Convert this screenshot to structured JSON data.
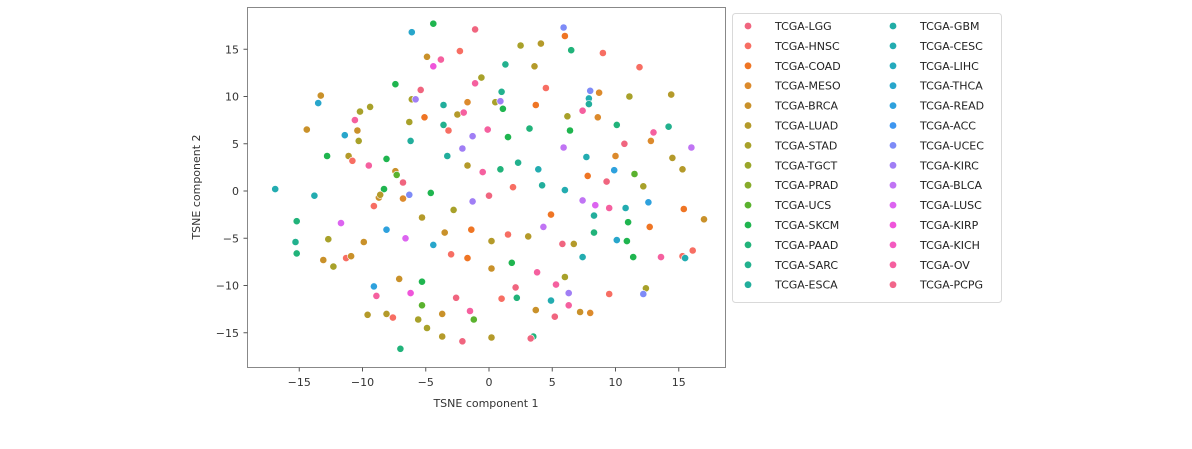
{
  "chart_data": {
    "type": "scatter",
    "title": "",
    "xlabel": "TSNE component 1",
    "ylabel": "TSNE component 2",
    "xlim": [
      -19.2,
      18.6
    ],
    "ylim": [
      -18.6,
      19.4
    ],
    "xticks": [
      -15,
      -10,
      -5,
      0,
      5,
      10,
      15
    ],
    "yticks": [
      -15,
      -10,
      -5,
      0,
      5,
      10,
      15
    ],
    "xtick_labels": [
      "−15",
      "−10",
      "−5",
      "0",
      "5",
      "10",
      "15"
    ],
    "ytick_labels": [
      "−15",
      "−10",
      "−5",
      "0",
      "5",
      "10",
      "15"
    ],
    "grid": false,
    "legend_position": "outside right, 2 columns",
    "legend": [
      {
        "label": "TCGA-LGG",
        "color": "#f0657f"
      },
      {
        "label": "TCGA-HNSC",
        "color": "#f76e63"
      },
      {
        "label": "TCGA-COAD",
        "color": "#ef7524"
      },
      {
        "label": "TCGA-MESO",
        "color": "#dc8a2c"
      },
      {
        "label": "TCGA-BRCA",
        "color": "#c9912a"
      },
      {
        "label": "TCGA-LUAD",
        "color": "#b49a2a"
      },
      {
        "label": "TCGA-STAD",
        "color": "#a8a12a"
      },
      {
        "label": "TCGA-TGCT",
        "color": "#9aa62a"
      },
      {
        "label": "TCGA-PRAD",
        "color": "#87ab2a"
      },
      {
        "label": "TCGA-UCS",
        "color": "#5ab22e"
      },
      {
        "label": "TCGA-SKCM",
        "color": "#1fb54f"
      },
      {
        "label": "TCGA-PAAD",
        "color": "#21b37a"
      },
      {
        "label": "TCGA-SARC",
        "color": "#22b18e"
      },
      {
        "label": "TCGA-ESCA",
        "color": "#22ae9c"
      },
      {
        "label": "TCGA-GBM",
        "color": "#21ada6"
      },
      {
        "label": "TCGA-CESC",
        "color": "#23acb0"
      },
      {
        "label": "TCGA-LIHC",
        "color": "#24aabd"
      },
      {
        "label": "TCGA-THCA",
        "color": "#28a6cb"
      },
      {
        "label": "TCGA-READ",
        "color": "#2ea1dd"
      },
      {
        "label": "TCGA-ACC",
        "color": "#3e96f0"
      },
      {
        "label": "TCGA-UCEC",
        "color": "#7e8bf7"
      },
      {
        "label": "TCGA-KIRC",
        "color": "#a07ef5"
      },
      {
        "label": "TCGA-BLCA",
        "color": "#c074f4"
      },
      {
        "label": "TCGA-LUSC",
        "color": "#dc64f0"
      },
      {
        "label": "TCGA-KIRP",
        "color": "#ef55da"
      },
      {
        "label": "TCGA-KICH",
        "color": "#f35bbf"
      },
      {
        "label": "TCGA-OV",
        "color": "#f5609f"
      },
      {
        "label": "TCGA-PCPG",
        "color": "#f1668a"
      }
    ],
    "points": [
      {
        "x": -6.1,
        "y": 16.8,
        "c": "TCGA-THCA"
      },
      {
        "x": -7.4,
        "y": 11.3,
        "c": "TCGA-SKCM"
      },
      {
        "x": -5.4,
        "y": 10.7,
        "c": "TCGA-LGG"
      },
      {
        "x": -6.1,
        "y": 9.7,
        "c": "TCGA-STAD"
      },
      {
        "x": -5.8,
        "y": 9.7,
        "c": "TCGA-KIRC"
      },
      {
        "x": -9.4,
        "y": 8.9,
        "c": "TCGA-STAD"
      },
      {
        "x": -10.2,
        "y": 8.4,
        "c": "TCGA-STAD"
      },
      {
        "x": -10.6,
        "y": 7.5,
        "c": "TCGA-OV"
      },
      {
        "x": -10.4,
        "y": 6.4,
        "c": "TCGA-BRCA"
      },
      {
        "x": -10.3,
        "y": 5.3,
        "c": "TCGA-STAD"
      },
      {
        "x": -6.3,
        "y": 7.3,
        "c": "TCGA-STAD"
      },
      {
        "x": -6.2,
        "y": 5.3,
        "c": "TCGA-ESCA"
      },
      {
        "x": -4.4,
        "y": 17.7,
        "c": "TCGA-SKCM"
      },
      {
        "x": -1.1,
        "y": 17.1,
        "c": "TCGA-LGG"
      },
      {
        "x": -2.3,
        "y": 14.8,
        "c": "TCGA-HNSC"
      },
      {
        "x": -4.9,
        "y": 14.2,
        "c": "TCGA-BRCA"
      },
      {
        "x": -4.4,
        "y": 13.2,
        "c": "TCGA-KIRP"
      },
      {
        "x": -3.8,
        "y": 13.9,
        "c": "TCGA-OV"
      },
      {
        "x": 1.3,
        "y": 13.4,
        "c": "TCGA-SARC"
      },
      {
        "x": 3.6,
        "y": 13.2,
        "c": "TCGA-LUAD"
      },
      {
        "x": 4.5,
        "y": 10.9,
        "c": "TCGA-HNSC"
      },
      {
        "x": -1.1,
        "y": 11.4,
        "c": "TCGA-OV"
      },
      {
        "x": -0.6,
        "y": 12.0,
        "c": "TCGA-STAD"
      },
      {
        "x": 1.0,
        "y": 10.5,
        "c": "TCGA-SARC"
      },
      {
        "x": 2.5,
        "y": 15.4,
        "c": "TCGA-STAD"
      },
      {
        "x": 4.1,
        "y": 15.6,
        "c": "TCGA-LUAD"
      },
      {
        "x": 5.9,
        "y": 17.3,
        "c": "TCGA-UCEC"
      },
      {
        "x": 6.0,
        "y": 16.4,
        "c": "TCGA-COAD"
      },
      {
        "x": 6.5,
        "y": 14.9,
        "c": "TCGA-PAAD"
      },
      {
        "x": 9.0,
        "y": 14.6,
        "c": "TCGA-HNSC"
      },
      {
        "x": 11.9,
        "y": 13.1,
        "c": "TCGA-HNSC"
      },
      {
        "x": 8.0,
        "y": 10.6,
        "c": "TCGA-UCEC"
      },
      {
        "x": 7.9,
        "y": 9.8,
        "c": "TCGA-CESC"
      },
      {
        "x": 8.7,
        "y": 10.4,
        "c": "TCGA-MESO"
      },
      {
        "x": 11.1,
        "y": 10.0,
        "c": "TCGA-STAD"
      },
      {
        "x": 14.4,
        "y": 10.2,
        "c": "TCGA-LUAD"
      },
      {
        "x": 7.9,
        "y": 9.2,
        "c": "TCGA-ESCA"
      },
      {
        "x": 7.4,
        "y": 8.5,
        "c": "TCGA-OV"
      },
      {
        "x": 8.6,
        "y": 7.8,
        "c": "TCGA-MESO"
      },
      {
        "x": -1.7,
        "y": 9.4,
        "c": "TCGA-MESO"
      },
      {
        "x": -3.6,
        "y": 9.1,
        "c": "TCGA-ESCA"
      },
      {
        "x": -5.1,
        "y": 7.8,
        "c": "TCGA-COAD"
      },
      {
        "x": -3.6,
        "y": 7.0,
        "c": "TCGA-SARC"
      },
      {
        "x": -2.5,
        "y": 8.1,
        "c": "TCGA-LUAD"
      },
      {
        "x": -2.0,
        "y": 8.3,
        "c": "TCGA-OV"
      },
      {
        "x": 0.5,
        "y": 9.4,
        "c": "TCGA-STAD"
      },
      {
        "x": 1.1,
        "y": 8.7,
        "c": "TCGA-SKCM"
      },
      {
        "x": 0.9,
        "y": 9.5,
        "c": "TCGA-KIRC"
      },
      {
        "x": 3.7,
        "y": 9.1,
        "c": "TCGA-COAD"
      },
      {
        "x": -13.3,
        "y": 10.1,
        "c": "TCGA-BRCA"
      },
      {
        "x": -13.5,
        "y": 9.3,
        "c": "TCGA-THCA"
      },
      {
        "x": -14.4,
        "y": 6.5,
        "c": "TCGA-BRCA"
      },
      {
        "x": -11.4,
        "y": 5.9,
        "c": "TCGA-THCA"
      },
      {
        "x": -12.8,
        "y": 3.7,
        "c": "TCGA-SKCM"
      },
      {
        "x": -11.1,
        "y": 3.7,
        "c": "TCGA-LUAD"
      },
      {
        "x": -10.8,
        "y": 3.2,
        "c": "TCGA-HNSC"
      },
      {
        "x": -9.5,
        "y": 2.7,
        "c": "TCGA-OV"
      },
      {
        "x": -8.1,
        "y": 3.4,
        "c": "TCGA-SKCM"
      },
      {
        "x": -7.4,
        "y": 2.1,
        "c": "TCGA-BRCA"
      },
      {
        "x": -16.9,
        "y": 0.2,
        "c": "TCGA-CESC"
      },
      {
        "x": -13.8,
        "y": -0.5,
        "c": "TCGA-CESC"
      },
      {
        "x": -8.3,
        "y": 0.2,
        "c": "TCGA-SKCM"
      },
      {
        "x": -7.3,
        "y": 1.7,
        "c": "TCGA-UCS"
      },
      {
        "x": -6.8,
        "y": 0.9,
        "c": "TCGA-LGG"
      },
      {
        "x": -8.7,
        "y": -0.7,
        "c": "TCGA-BRCA"
      },
      {
        "x": -9.1,
        "y": -1.6,
        "c": "TCGA-HNSC"
      },
      {
        "x": -8.6,
        "y": -0.4,
        "c": "TCGA-LUAD"
      },
      {
        "x": -6.8,
        "y": -0.8,
        "c": "TCGA-MESO"
      },
      {
        "x": -6.3,
        "y": -0.4,
        "c": "TCGA-UCEC"
      },
      {
        "x": -11.7,
        "y": -3.4,
        "c": "TCGA-LUSC"
      },
      {
        "x": -12.7,
        "y": -5.1,
        "c": "TCGA-STAD"
      },
      {
        "x": -9.9,
        "y": -5.4,
        "c": "TCGA-BRCA"
      },
      {
        "x": -15.2,
        "y": -6.6,
        "c": "TCGA-PAAD"
      },
      {
        "x": -12.3,
        "y": -8.0,
        "c": "TCGA-STAD"
      },
      {
        "x": -11.3,
        "y": -7.1,
        "c": "TCGA-HNSC"
      },
      {
        "x": -10.9,
        "y": -6.9,
        "c": "TCGA-BRCA"
      },
      {
        "x": -15.2,
        "y": -3.2,
        "c": "TCGA-PAAD"
      },
      {
        "x": -15.3,
        "y": -5.4,
        "c": "TCGA-SARC"
      },
      {
        "x": -13.1,
        "y": -7.3,
        "c": "TCGA-BRCA"
      },
      {
        "x": -9.1,
        "y": -10.1,
        "c": "TCGA-READ"
      },
      {
        "x": -8.9,
        "y": -11.1,
        "c": "TCGA-OV"
      },
      {
        "x": -9.6,
        "y": -13.1,
        "c": "TCGA-LUAD"
      },
      {
        "x": -8.1,
        "y": -13.0,
        "c": "TCGA-LUAD"
      },
      {
        "x": -7.6,
        "y": -13.4,
        "c": "TCGA-HNSC"
      },
      {
        "x": -6.2,
        "y": -10.8,
        "c": "TCGA-KIRP"
      },
      {
        "x": -5.3,
        "y": -9.6,
        "c": "TCGA-SKCM"
      },
      {
        "x": -5.3,
        "y": -12.1,
        "c": "TCGA-UCS"
      },
      {
        "x": -5.6,
        "y": -13.6,
        "c": "TCGA-STAD"
      },
      {
        "x": -3.7,
        "y": -13.0,
        "c": "TCGA-BRCA"
      },
      {
        "x": -3.7,
        "y": -15.4,
        "c": "TCGA-LUAD"
      },
      {
        "x": -4.9,
        "y": -14.5,
        "c": "TCGA-STAD"
      },
      {
        "x": -7.0,
        "y": -16.7,
        "c": "TCGA-PAAD"
      },
      {
        "x": -2.1,
        "y": -15.9,
        "c": "TCGA-LGG"
      },
      {
        "x": -2.6,
        "y": -11.3,
        "c": "TCGA-LGG"
      },
      {
        "x": -1.5,
        "y": -12.7,
        "c": "TCGA-OV"
      },
      {
        "x": -1.2,
        "y": -13.6,
        "c": "TCGA-UCS"
      },
      {
        "x": 1.0,
        "y": -11.4,
        "c": "TCGA-HNSC"
      },
      {
        "x": 2.2,
        "y": -11.3,
        "c": "TCGA-PAAD"
      },
      {
        "x": 0.2,
        "y": -15.5,
        "c": "TCGA-LUAD"
      },
      {
        "x": 3.7,
        "y": -12.6,
        "c": "TCGA-BRCA"
      },
      {
        "x": 3.5,
        "y": -15.4,
        "c": "TCGA-PAAD"
      },
      {
        "x": 3.3,
        "y": -15.6,
        "c": "TCGA-LGG"
      },
      {
        "x": 4.9,
        "y": -11.6,
        "c": "TCGA-CESC"
      },
      {
        "x": 5.2,
        "y": -13.3,
        "c": "TCGA-LGG"
      },
      {
        "x": 7.2,
        "y": -12.8,
        "c": "TCGA-BRCA"
      },
      {
        "x": 8.0,
        "y": -12.9,
        "c": "TCGA-MESO"
      },
      {
        "x": 6.3,
        "y": -12.1,
        "c": "TCGA-OV"
      },
      {
        "x": 9.5,
        "y": -10.9,
        "c": "TCGA-HNSC"
      },
      {
        "x": 12.4,
        "y": -10.3,
        "c": "TCGA-STAD"
      },
      {
        "x": 12.2,
        "y": -10.9,
        "c": "TCGA-UCEC"
      },
      {
        "x": 6.3,
        "y": -10.8,
        "c": "TCGA-KIRC"
      },
      {
        "x": 6.0,
        "y": -9.1,
        "c": "TCGA-STAD"
      },
      {
        "x": 7.4,
        "y": -7.0,
        "c": "TCGA-CESC"
      },
      {
        "x": 11.4,
        "y": -7.0,
        "c": "TCGA-SKCM"
      },
      {
        "x": 10.9,
        "y": -5.3,
        "c": "TCGA-SKCM"
      },
      {
        "x": 13.6,
        "y": -7.0,
        "c": "TCGA-OV"
      },
      {
        "x": 15.3,
        "y": -6.9,
        "c": "TCGA-HNSC"
      },
      {
        "x": 15.5,
        "y": -7.1,
        "c": "TCGA-CESC"
      },
      {
        "x": 16.1,
        "y": -6.3,
        "c": "TCGA-HNSC"
      },
      {
        "x": 12.7,
        "y": -3.8,
        "c": "TCGA-COAD"
      },
      {
        "x": 10.8,
        "y": -1.8,
        "c": "TCGA-CESC"
      },
      {
        "x": 11.0,
        "y": -3.3,
        "c": "TCGA-SKCM"
      },
      {
        "x": 8.3,
        "y": -4.4,
        "c": "TCGA-PAAD"
      },
      {
        "x": 8.3,
        "y": -2.6,
        "c": "TCGA-ESCA"
      },
      {
        "x": 4.9,
        "y": -2.5,
        "c": "TCGA-COAD"
      },
      {
        "x": 5.8,
        "y": -5.6,
        "c": "TCGA-LGG"
      },
      {
        "x": 6.7,
        "y": -5.6,
        "c": "TCGA-LUAD"
      },
      {
        "x": 10.1,
        "y": -5.2,
        "c": "TCGA-THCA"
      },
      {
        "x": 15.4,
        "y": -1.9,
        "c": "TCGA-COAD"
      },
      {
        "x": 16.0,
        "y": 4.6,
        "c": "TCGA-BLCA"
      },
      {
        "x": 14.2,
        "y": 6.8,
        "c": "TCGA-SARC"
      },
      {
        "x": 13.0,
        "y": 6.2,
        "c": "TCGA-OV"
      },
      {
        "x": 14.5,
        "y": 3.5,
        "c": "TCGA-LUAD"
      },
      {
        "x": 12.8,
        "y": 5.3,
        "c": "TCGA-MESO"
      },
      {
        "x": 15.3,
        "y": 2.3,
        "c": "TCGA-LUAD"
      },
      {
        "x": 17.0,
        "y": -3.0,
        "c": "TCGA-BRCA"
      },
      {
        "x": 10.7,
        "y": 5.0,
        "c": "TCGA-LGG"
      },
      {
        "x": 10.1,
        "y": 7.0,
        "c": "TCGA-PAAD"
      },
      {
        "x": 10.0,
        "y": 3.7,
        "c": "TCGA-MESO"
      },
      {
        "x": 11.5,
        "y": 1.8,
        "c": "TCGA-UCS"
      },
      {
        "x": 12.2,
        "y": 0.5,
        "c": "TCGA-STAD"
      },
      {
        "x": 12.6,
        "y": -1.2,
        "c": "TCGA-READ"
      },
      {
        "x": 9.9,
        "y": 2.2,
        "c": "TCGA-READ"
      },
      {
        "x": 9.3,
        "y": 1.0,
        "c": "TCGA-LGG"
      },
      {
        "x": 9.5,
        "y": -1.8,
        "c": "TCGA-OV"
      },
      {
        "x": 6.2,
        "y": 7.9,
        "c": "TCGA-STAD"
      },
      {
        "x": 6.4,
        "y": 6.4,
        "c": "TCGA-SKCM"
      },
      {
        "x": 5.9,
        "y": 4.6,
        "c": "TCGA-BLCA"
      },
      {
        "x": 7.7,
        "y": 3.6,
        "c": "TCGA-CESC"
      },
      {
        "x": 7.8,
        "y": 1.6,
        "c": "TCGA-COAD"
      },
      {
        "x": 6.0,
        "y": 0.1,
        "c": "TCGA-CESC"
      },
      {
        "x": 7.4,
        "y": -1.0,
        "c": "TCGA-BLCA"
      },
      {
        "x": 8.4,
        "y": -1.5,
        "c": "TCGA-LUSC"
      },
      {
        "x": 3.2,
        "y": 6.6,
        "c": "TCGA-PAAD"
      },
      {
        "x": 1.5,
        "y": 5.7,
        "c": "TCGA-SKCM"
      },
      {
        "x": -0.1,
        "y": 6.5,
        "c": "TCGA-OV"
      },
      {
        "x": -1.3,
        "y": 5.8,
        "c": "TCGA-KIRC"
      },
      {
        "x": -3.2,
        "y": 6.4,
        "c": "TCGA-HNSC"
      },
      {
        "x": -2.1,
        "y": 4.5,
        "c": "TCGA-KIRC"
      },
      {
        "x": -3.3,
        "y": 3.7,
        "c": "TCGA-ESCA"
      },
      {
        "x": -1.7,
        "y": 2.7,
        "c": "TCGA-LUAD"
      },
      {
        "x": -0.5,
        "y": 2.0,
        "c": "TCGA-OV"
      },
      {
        "x": 0.9,
        "y": 2.3,
        "c": "TCGA-PAAD"
      },
      {
        "x": 2.3,
        "y": 3.0,
        "c": "TCGA-SARC"
      },
      {
        "x": 3.9,
        "y": 2.3,
        "c": "TCGA-CESC"
      },
      {
        "x": 4.2,
        "y": 0.6,
        "c": "TCGA-ESCA"
      },
      {
        "x": 1.9,
        "y": 0.4,
        "c": "TCGA-HNSC"
      },
      {
        "x": 0.0,
        "y": -0.5,
        "c": "TCGA-LGG"
      },
      {
        "x": -1.3,
        "y": -1.1,
        "c": "TCGA-KIRC"
      },
      {
        "x": -2.8,
        "y": -2.0,
        "c": "TCGA-STAD"
      },
      {
        "x": -4.6,
        "y": -0.2,
        "c": "TCGA-SKCM"
      },
      {
        "x": -5.3,
        "y": -2.8,
        "c": "TCGA-LUAD"
      },
      {
        "x": -3.5,
        "y": -4.4,
        "c": "TCGA-BRCA"
      },
      {
        "x": -1.4,
        "y": -4.1,
        "c": "TCGA-COAD"
      },
      {
        "x": 0.2,
        "y": -5.3,
        "c": "TCGA-LUAD"
      },
      {
        "x": 1.5,
        "y": -4.6,
        "c": "TCGA-HNSC"
      },
      {
        "x": 3.1,
        "y": -4.8,
        "c": "TCGA-LUAD"
      },
      {
        "x": 4.3,
        "y": -3.8,
        "c": "TCGA-BLCA"
      },
      {
        "x": 1.8,
        "y": -7.6,
        "c": "TCGA-SKCM"
      },
      {
        "x": 0.2,
        "y": -8.2,
        "c": "TCGA-BRCA"
      },
      {
        "x": -1.7,
        "y": -7.1,
        "c": "TCGA-COAD"
      },
      {
        "x": -3.0,
        "y": -6.7,
        "c": "TCGA-HNSC"
      },
      {
        "x": -4.4,
        "y": -5.7,
        "c": "TCGA-THCA"
      },
      {
        "x": -6.6,
        "y": -5.0,
        "c": "TCGA-LUSC"
      },
      {
        "x": -8.1,
        "y": -4.1,
        "c": "TCGA-READ"
      },
      {
        "x": -7.1,
        "y": -9.3,
        "c": "TCGA-BRCA"
      },
      {
        "x": 3.8,
        "y": -8.6,
        "c": "TCGA-OV"
      },
      {
        "x": 5.3,
        "y": -9.9,
        "c": "TCGA-OV"
      },
      {
        "x": 2.1,
        "y": -10.2,
        "c": "TCGA-LGG"
      }
    ]
  }
}
